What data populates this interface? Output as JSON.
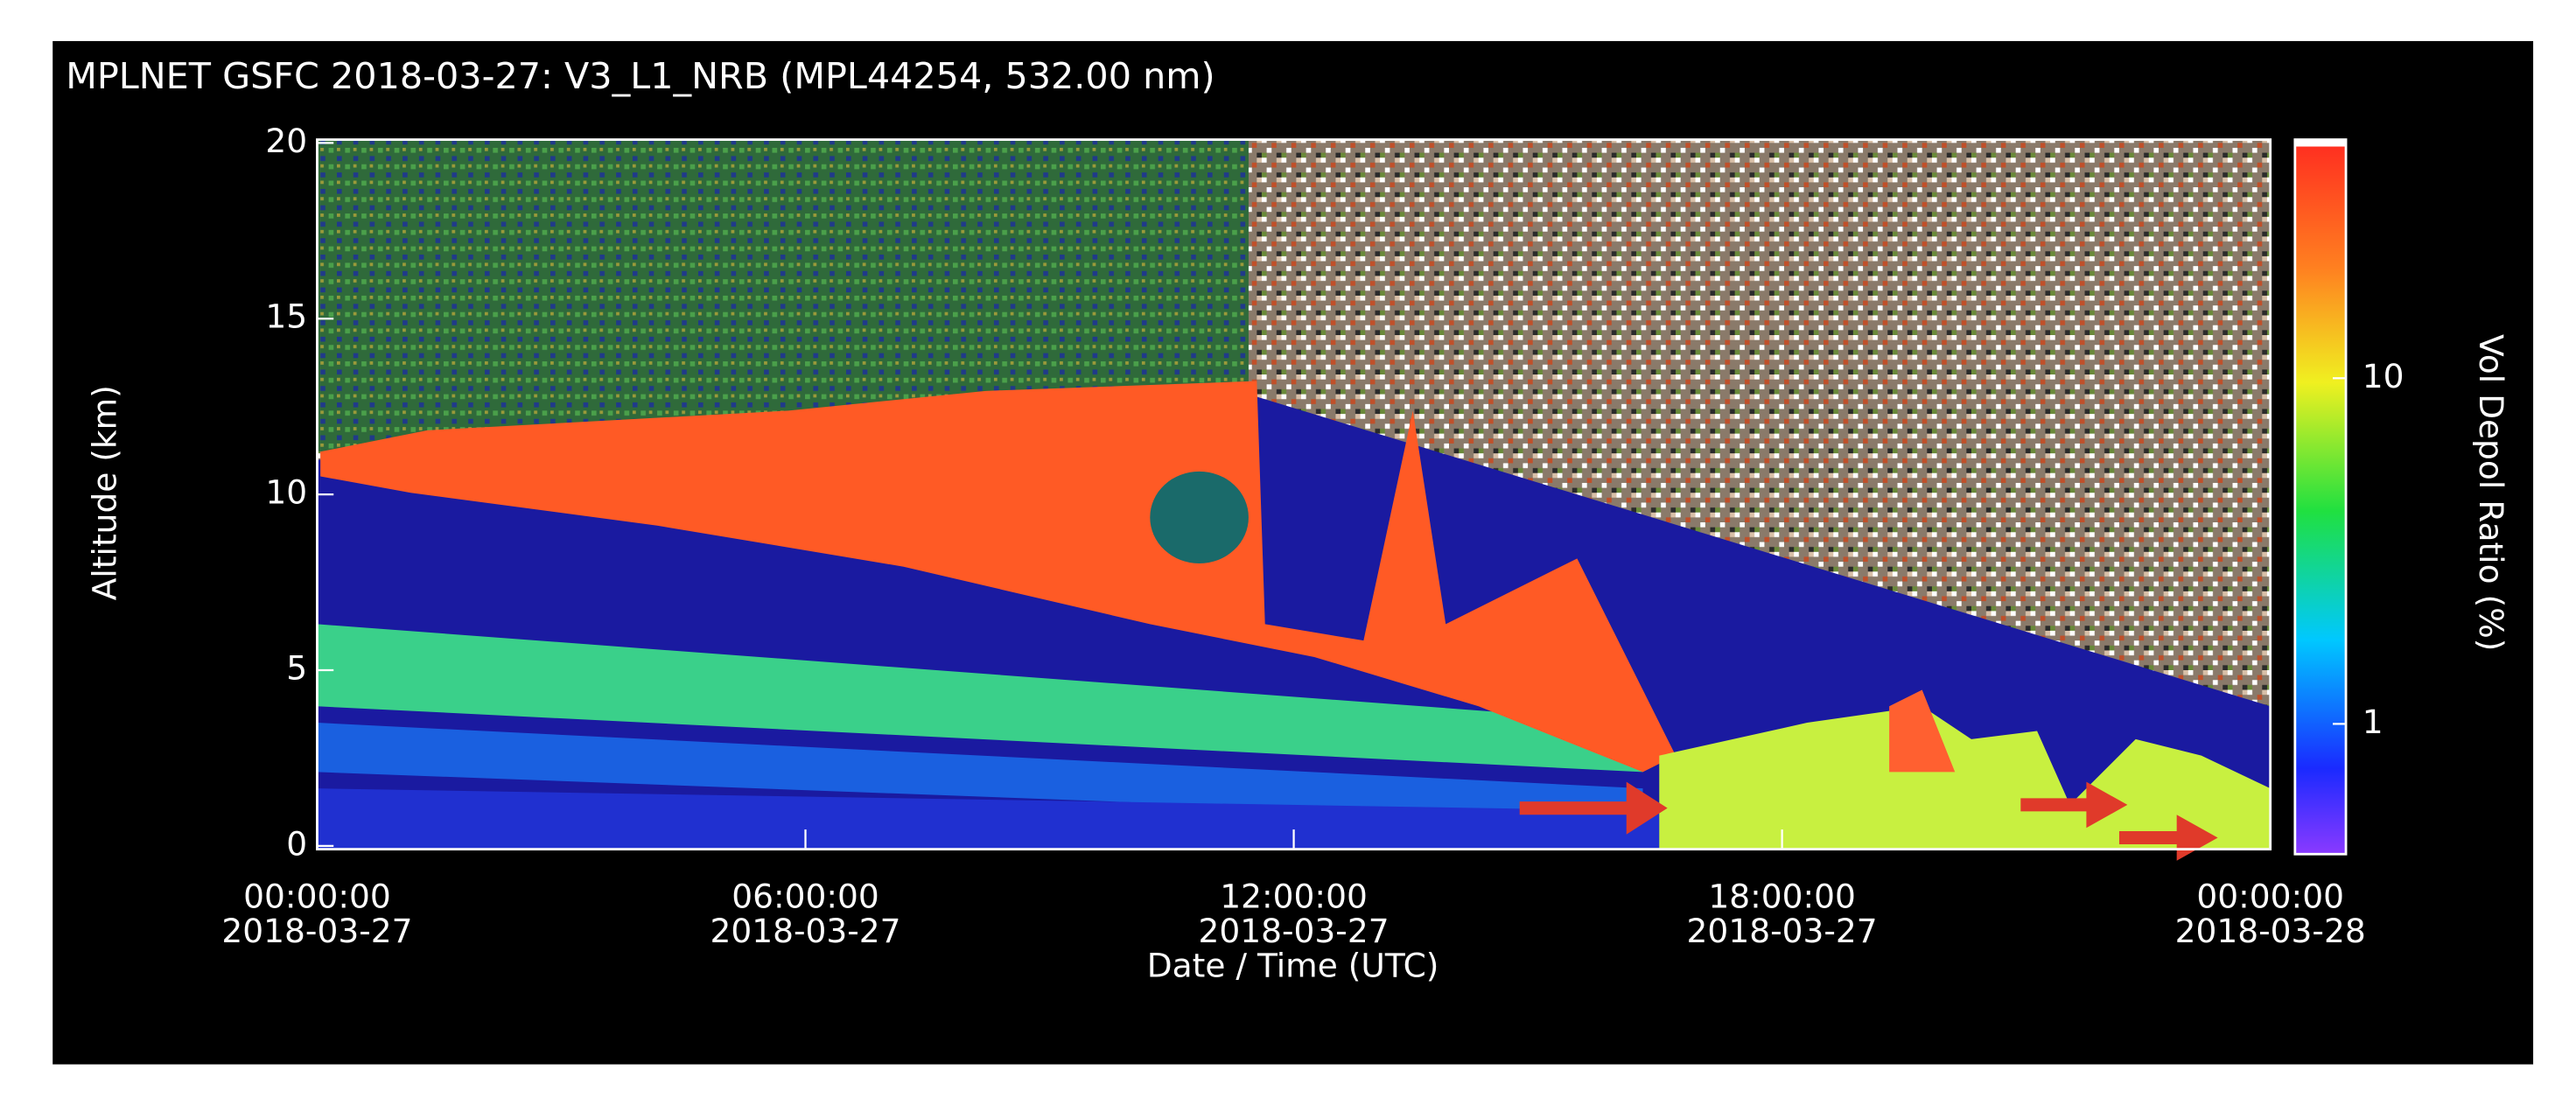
{
  "chart_data": {
    "type": "heatmap",
    "title": "MPLNET GSFC 2018-03-27:  V3_L1_NRB  (MPL44254, 532.00 nm)",
    "xlabel": "Date / Time (UTC)",
    "ylabel": "Altitude (km)",
    "xlim": [
      0,
      24
    ],
    "xticks": [
      {
        "value": 0,
        "label": "00:00:00",
        "date": "2018-03-27"
      },
      {
        "value": 6,
        "label": "06:00:00",
        "date": "2018-03-27"
      },
      {
        "value": 12,
        "label": "12:00:00",
        "date": "2018-03-27"
      },
      {
        "value": 18,
        "label": "18:00:00",
        "date": "2018-03-27"
      },
      {
        "value": 24,
        "label": "00:00:00",
        "date": "2018-03-28"
      }
    ],
    "ylim": [
      0,
      20
    ],
    "yticks": [
      0,
      5,
      10,
      15,
      20
    ],
    "colorbar": {
      "label": "Vol Depol Ratio (%)",
      "log": true,
      "clim": [
        0.42,
        49
      ],
      "ticks": [
        1,
        10
      ]
    }
  }
}
